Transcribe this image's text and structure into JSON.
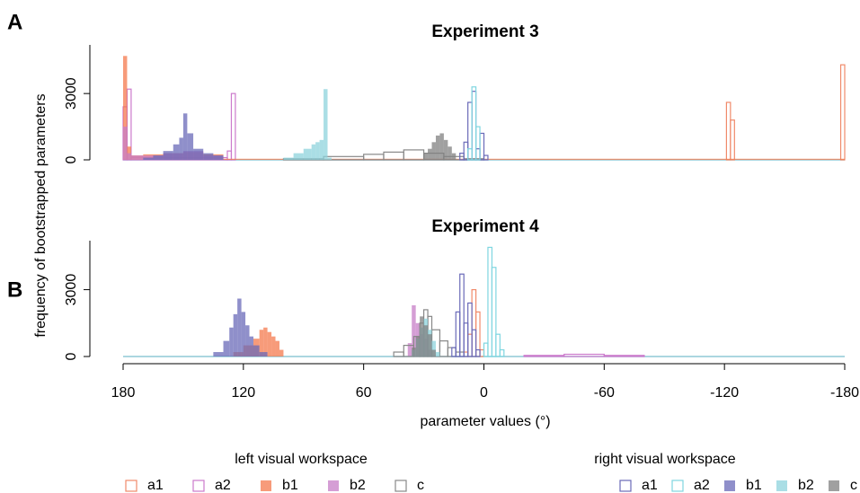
{
  "chart_data": [
    {
      "type": "histogram",
      "title": "Experiment 3",
      "panel": "A",
      "ylabel": "frequency of bootstrapped parameters",
      "xlim": [
        180,
        -180
      ],
      "ylim": [
        0,
        5200
      ],
      "yticks": [
        0,
        3000
      ],
      "series": [
        {
          "name": "a1",
          "group": "left visual workspace",
          "color": "#f08a6a",
          "filled": false,
          "bins": [
            180,
            178,
            -121,
            -123,
            -125,
            -178,
            -180
          ],
          "counts": [
            0,
            0,
            2600,
            1800,
            0,
            4300
          ]
        },
        {
          "name": "a2",
          "group": "left visual workspace",
          "color": "#cc7acc",
          "filled": false,
          "bins": [
            180,
            178,
            176,
            128,
            126,
            124,
            122,
            -180
          ],
          "counts": [
            2400,
            3200,
            100,
            400,
            3000,
            0,
            0
          ]
        },
        {
          "name": "b1",
          "group": "left visual workspace",
          "color": "#f4794e",
          "filled": true,
          "bins": [
            180,
            178,
            176,
            170,
            160,
            150,
            140,
            130,
            -180
          ],
          "counts": [
            4700,
            600,
            200,
            250,
            300,
            350,
            250,
            50
          ]
        },
        {
          "name": "b2",
          "group": "left visual workspace",
          "color": "#c77dc7",
          "filled": true,
          "bins": [
            180,
            178,
            176,
            160,
            150,
            140,
            130,
            -180
          ],
          "counts": [
            1500,
            300,
            200,
            300,
            400,
            200,
            0
          ]
        },
        {
          "name": "c",
          "group": "left visual workspace",
          "color": "#888888",
          "filled": false,
          "bins": [
            100,
            80,
            60,
            50,
            40,
            30,
            20,
            10,
            0
          ],
          "counts": [
            50,
            150,
            250,
            350,
            450,
            300,
            150,
            50
          ]
        },
        {
          "name": "a1",
          "group": "right visual workspace",
          "color": "#6a6ab8",
          "filled": false,
          "bins": [
            12,
            10,
            8,
            6,
            4,
            2,
            0,
            -2
          ],
          "counts": [
            300,
            800,
            2600,
            3100,
            500,
            1200,
            200
          ]
        },
        {
          "name": "a2",
          "group": "right visual workspace",
          "color": "#7fd6e0",
          "filled": false,
          "bins": [
            8,
            6,
            4,
            2
          ],
          "counts": [
            500,
            3300,
            1500
          ]
        },
        {
          "name": "b1",
          "group": "right visual workspace",
          "color": "#6a6ab8",
          "filled": true,
          "bins": [
            170,
            165,
            160,
            155,
            152,
            150,
            148,
            145,
            140,
            135,
            130
          ],
          "counts": [
            100,
            200,
            400,
            700,
            1000,
            2100,
            1200,
            500,
            300,
            200
          ]
        },
        {
          "name": "b2",
          "group": "right visual workspace",
          "color": "#8ed3dc",
          "filled": true,
          "bins": [
            100,
            95,
            90,
            86,
            84,
            82,
            80,
            78,
            76,
            -180
          ],
          "counts": [
            100,
            300,
            500,
            700,
            800,
            900,
            3200,
            100,
            0
          ]
        },
        {
          "name": "c",
          "group": "right visual workspace",
          "color": "#808080",
          "filled": true,
          "bins": [
            30,
            28,
            26,
            24,
            22,
            20,
            18,
            16,
            14
          ],
          "counts": [
            300,
            500,
            800,
            1100,
            1200,
            900,
            600,
            300
          ]
        }
      ]
    },
    {
      "type": "histogram",
      "title": "Experiment 4",
      "panel": "B",
      "xlabel": "parameter values (°)",
      "xlim": [
        180,
        -180
      ],
      "xticks": [
        180,
        120,
        60,
        0,
        -60,
        -120,
        -180
      ],
      "ylim": [
        0,
        5200
      ],
      "yticks": [
        0,
        3000
      ],
      "series": [
        {
          "name": "a1",
          "color": "#f08a6a",
          "filled": false,
          "bins": [
            10,
            8,
            6,
            4,
            2,
            0
          ],
          "counts": [
            200,
            1000,
            3000,
            2000,
            300
          ]
        },
        {
          "name": "a2",
          "color": "#cc7acc",
          "filled": false,
          "bins": [
            -20,
            -40,
            -60,
            -80
          ],
          "counts": [
            50,
            100,
            50
          ]
        },
        {
          "name": "b1",
          "color": "#f4794e",
          "filled": true,
          "bins": [
            125,
            120,
            115,
            112,
            110,
            108,
            106,
            104,
            102,
            100
          ],
          "counts": [
            200,
            500,
            800,
            1200,
            1300,
            1100,
            900,
            700,
            300
          ]
        },
        {
          "name": "b2",
          "color": "#c77dc7",
          "filled": true,
          "bins": [
            38,
            36,
            34,
            32,
            30,
            28,
            26
          ],
          "counts": [
            600,
            2300,
            1500,
            1000,
            800,
            300
          ]
        },
        {
          "name": "c",
          "color": "#888888",
          "filled": false,
          "bins": [
            45,
            40,
            35,
            32,
            30,
            28,
            26,
            22,
            18,
            14,
            10
          ],
          "counts": [
            200,
            500,
            900,
            1500,
            2100,
            1800,
            1200,
            700,
            400,
            200
          ]
        },
        {
          "name": "a1",
          "color": "#6a6ab8",
          "filled": false,
          "bins": [
            16,
            14,
            12,
            10,
            8,
            6,
            4,
            2
          ],
          "counts": [
            400,
            2000,
            3700,
            1500,
            2400,
            1200,
            300
          ]
        },
        {
          "name": "a2",
          "color": "#7fd6e0",
          "filled": false,
          "bins": [
            0,
            -2,
            -4,
            -6,
            -8,
            -10
          ],
          "counts": [
            600,
            4900,
            4000,
            1000,
            300
          ]
        },
        {
          "name": "b1",
          "color": "#6a6ab8",
          "filled": true,
          "bins": [
            135,
            130,
            127,
            125,
            123,
            121,
            119,
            117,
            115,
            112,
            108
          ],
          "counts": [
            200,
            700,
            1300,
            1900,
            2600,
            2000,
            1400,
            900,
            500,
            200
          ]
        },
        {
          "name": "b2",
          "color": "#8ed3dc",
          "filled": true,
          "bins": [
            36,
            34,
            32,
            30,
            28,
            26,
            24,
            22
          ],
          "counts": [
            300,
            800,
            1300,
            1700,
            1200,
            700,
            200
          ]
        },
        {
          "name": "c",
          "color": "#808080",
          "filled": true,
          "bins": [
            36,
            34,
            32,
            30,
            28,
            26,
            24
          ],
          "counts": [
            400,
            900,
            1800,
            1400,
            1000,
            300
          ]
        }
      ]
    }
  ]
}
